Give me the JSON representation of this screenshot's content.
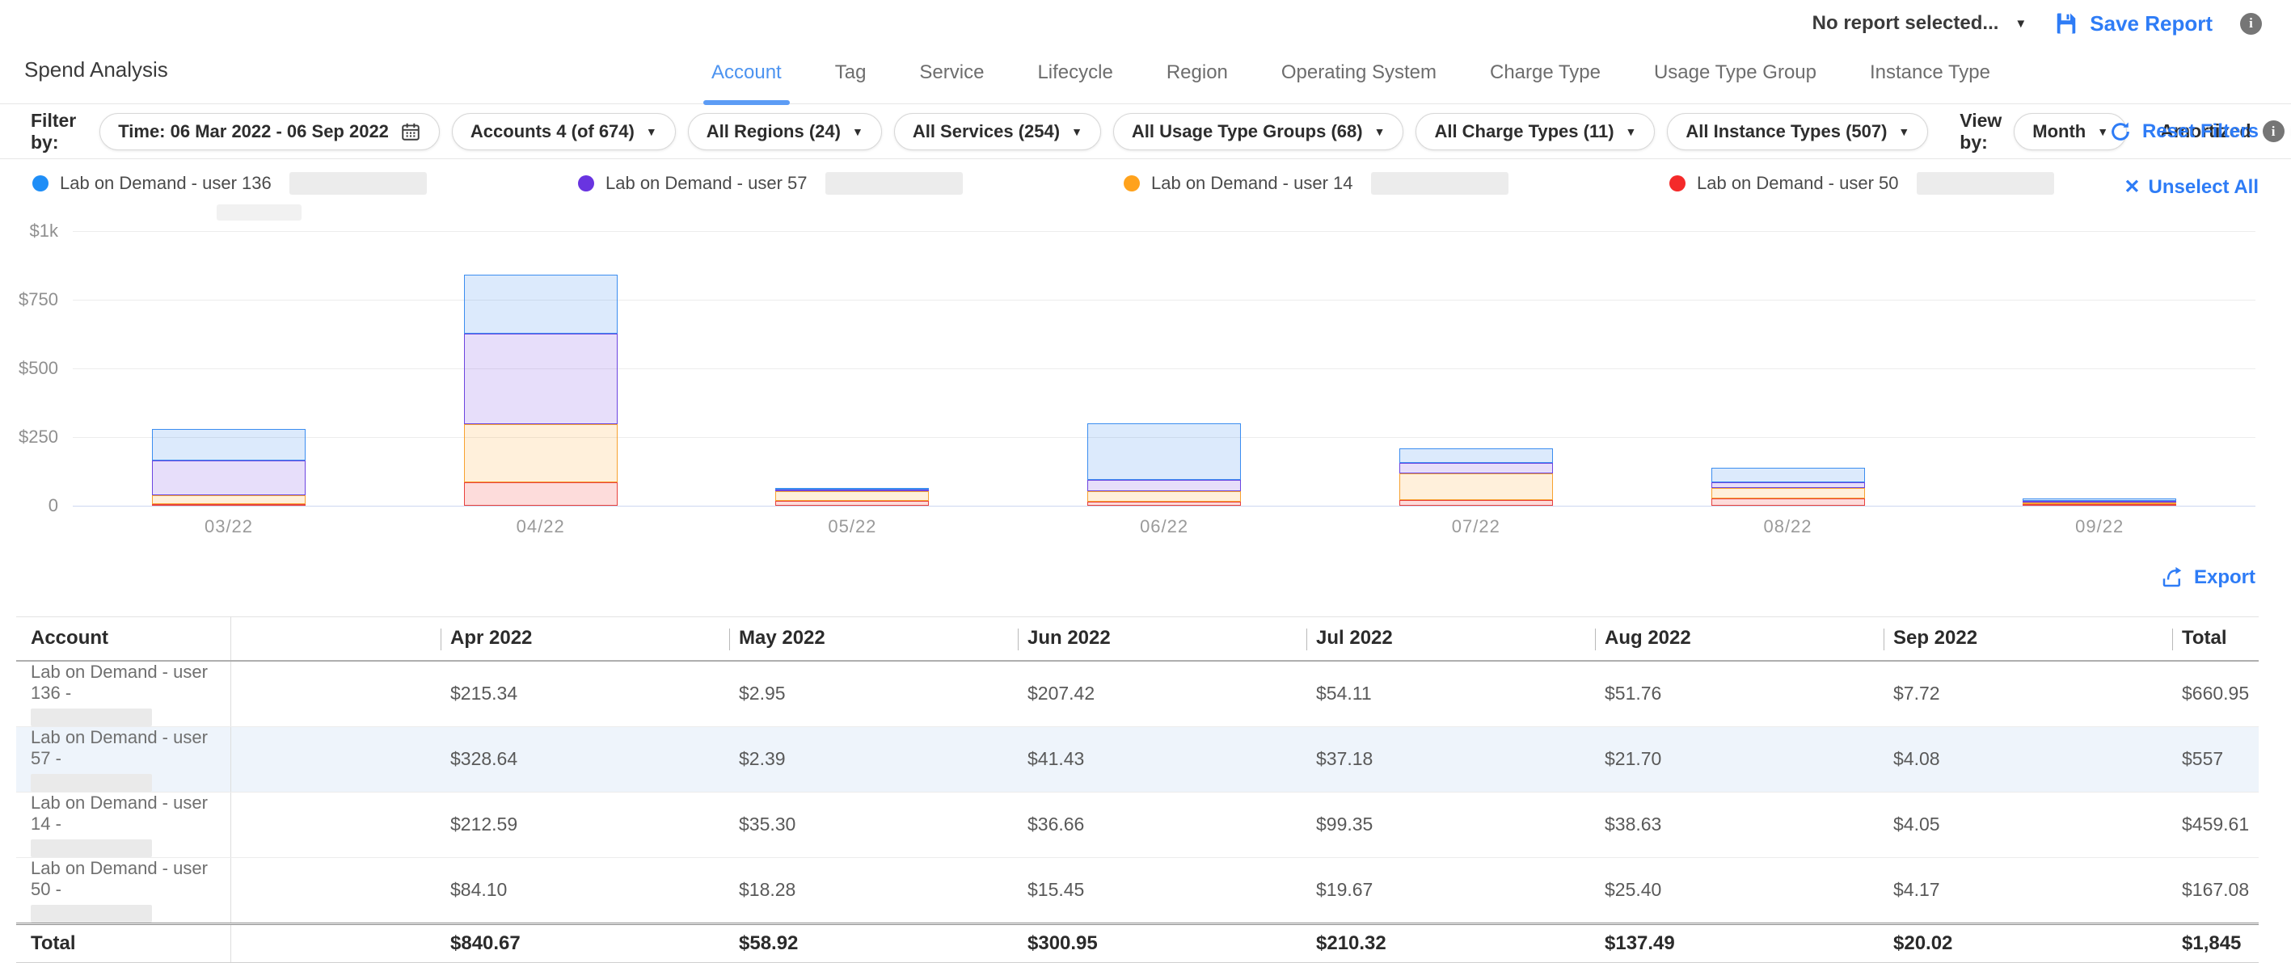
{
  "topbar": {
    "report_selector": "No report selected...",
    "save_report": "Save Report"
  },
  "page_title": "Spend Analysis",
  "tabs": {
    "active_index": 0,
    "items": [
      "Account",
      "Tag",
      "Service",
      "Lifecycle",
      "Region",
      "Operating System",
      "Charge Type",
      "Usage Type Group",
      "Instance Type"
    ]
  },
  "filter_bar": {
    "filter_by_label": "Filter by:",
    "time_filter": "Time: 06 Mar 2022 - 06 Sep 2022",
    "dropdown_pills": [
      "Accounts 4 (of 674)",
      "All Regions (24)",
      "All Services (254)",
      "All Usage Type Groups (68)",
      "All Charge Types (11)",
      "All Instance Types (507)"
    ],
    "view_by_label": "View by:",
    "view_by_value": "Month",
    "amortized_label": "Amortized",
    "amortized_enabled": false,
    "reset_filters_label": "Reset Filters"
  },
  "legend": {
    "unselect_all_label": "Unselect All",
    "items": [
      {
        "label": "Lab on Demand - user 136",
        "color": "#1f8ef7",
        "redacted": true,
        "redacted_second_line": true
      },
      {
        "label": "Lab on Demand - user 57",
        "color": "#6934e0",
        "redacted": true,
        "redacted_second_line": false
      },
      {
        "label": "Lab on Demand - user 14",
        "color": "#ffa21c",
        "redacted": true,
        "redacted_second_line": false
      },
      {
        "label": "Lab on Demand - user 50",
        "color": "#f42a2a",
        "redacted": true,
        "redacted_second_line": false
      }
    ]
  },
  "chart_data": {
    "type": "bar",
    "stacked": true,
    "title": "",
    "xlabel": "",
    "ylabel": "",
    "ylim": [
      0,
      1000
    ],
    "grid": true,
    "legend_position": "top",
    "categories": [
      "03/22",
      "04/22",
      "05/22",
      "06/22",
      "07/22",
      "08/22",
      "09/22"
    ],
    "yticks": [
      {
        "label": "$1k",
        "value": 1000
      },
      {
        "label": "$750",
        "value": 750
      },
      {
        "label": "$500",
        "value": 500
      },
      {
        "label": "$250",
        "value": 250
      },
      {
        "label": "0",
        "value": 0
      }
    ],
    "series": [
      {
        "name": "Lab on Demand - user 50",
        "color": "#e9413d",
        "fill": "rgba(244,60,54,0.18)",
        "values": [
          2,
          84.1,
          18.28,
          15.45,
          19.67,
          25.4,
          4.17
        ]
      },
      {
        "name": "Lab on Demand - user 14",
        "color": "#f7a12f",
        "fill": "rgba(255,162,28,0.16)",
        "values": [
          31,
          212.59,
          35.3,
          36.66,
          99.35,
          38.63,
          4.05
        ]
      },
      {
        "name": "Lab on Demand - user 57",
        "color": "#6c45e0",
        "fill": "rgba(105,52,224,0.16)",
        "values": [
          128,
          328.64,
          2.39,
          41.43,
          37.18,
          21.7,
          4.08
        ]
      },
      {
        "name": "Lab on Demand - user 136",
        "color": "#3b8df0",
        "fill": "rgba(59,141,240,0.18)",
        "values": [
          116,
          215.34,
          2.95,
          207.42,
          54.11,
          51.76,
          7.72
        ]
      }
    ]
  },
  "export_label": "Export",
  "table": {
    "columns": [
      "Account",
      "Apr 2022",
      "May 2022",
      "Jun 2022",
      "Jul 2022",
      "Aug 2022",
      "Sep 2022",
      "Total"
    ],
    "rows": [
      {
        "account": "Lab on Demand - user 136 -",
        "redacted": true,
        "highlighted": false,
        "values": [
          "$215.34",
          "$2.95",
          "$207.42",
          "$54.11",
          "$51.76",
          "$7.72",
          "$660.95"
        ]
      },
      {
        "account": "Lab on Demand - user 57 -",
        "redacted": true,
        "highlighted": true,
        "values": [
          "$328.64",
          "$2.39",
          "$41.43",
          "$37.18",
          "$21.70",
          "$4.08",
          "$557"
        ]
      },
      {
        "account": "Lab on Demand - user 14 -",
        "redacted": true,
        "highlighted": false,
        "values": [
          "$212.59",
          "$35.30",
          "$36.66",
          "$99.35",
          "$38.63",
          "$4.05",
          "$459.61"
        ]
      },
      {
        "account": "Lab on Demand - user 50 -",
        "redacted": true,
        "highlighted": false,
        "values": [
          "$84.10",
          "$18.28",
          "$15.45",
          "$19.67",
          "$25.40",
          "$4.17",
          "$167.08"
        ]
      }
    ],
    "total_row": {
      "label": "Total",
      "values": [
        "$840.67",
        "$58.92",
        "$300.95",
        "$210.32",
        "$137.49",
        "$20.02",
        "$1,845"
      ]
    }
  },
  "colors": {
    "accent_blue": "#2e7cf6"
  }
}
